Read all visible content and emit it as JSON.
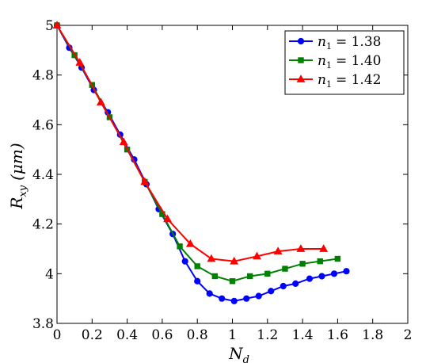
{
  "chart_data": {
    "type": "line",
    "title": "",
    "xlabel": "N",
    "xlabel_sub": "d",
    "ylabel": "R",
    "ylabel_sub": "xy",
    "ylabel_unit": "(μm)",
    "xlim": [
      0,
      2
    ],
    "ylim": [
      3.8,
      5
    ],
    "x_ticks": [
      0,
      0.2,
      0.4,
      0.6,
      0.8,
      1,
      1.2,
      1.4,
      1.6,
      1.8,
      2
    ],
    "x_tick_labels": [
      "0",
      "0.2",
      "0.4",
      "0.6",
      "0.8",
      "1",
      "1.2",
      "1.4",
      "1.6",
      "1.8",
      "2"
    ],
    "y_ticks": [
      3.8,
      4,
      4.2,
      4.4,
      4.6,
      4.8,
      5
    ],
    "y_tick_labels": [
      "3.8",
      "4",
      "4.2",
      "4.4",
      "4.6",
      "4.8",
      "5"
    ],
    "grid": false,
    "legend_position": "top-right",
    "series": [
      {
        "name": "n1 = 1.38",
        "legend_var": "n",
        "legend_sub": "1",
        "legend_value": "= 1.38",
        "color": "#0000ff",
        "marker": "circle",
        "x": [
          0,
          0.07,
          0.14,
          0.21,
          0.29,
          0.36,
          0.44,
          0.51,
          0.58,
          0.66,
          0.73,
          0.8,
          0.87,
          0.94,
          1.01,
          1.08,
          1.15,
          1.22,
          1.29,
          1.36,
          1.44,
          1.51,
          1.58,
          1.65
        ],
        "y": [
          5.0,
          4.91,
          4.83,
          4.74,
          4.65,
          4.56,
          4.46,
          4.36,
          4.26,
          4.16,
          4.05,
          3.97,
          3.92,
          3.9,
          3.89,
          3.9,
          3.91,
          3.93,
          3.95,
          3.96,
          3.98,
          3.99,
          4.0,
          4.01
        ]
      },
      {
        "name": "n1 = 1.40",
        "legend_var": "n",
        "legend_sub": "1",
        "legend_value": "= 1.40",
        "color": "#008000",
        "marker": "square",
        "x": [
          0,
          0.1,
          0.2,
          0.3,
          0.4,
          0.5,
          0.6,
          0.7,
          0.8,
          0.9,
          1.0,
          1.1,
          1.2,
          1.3,
          1.4,
          1.5,
          1.6
        ],
        "y": [
          5.0,
          4.88,
          4.76,
          4.63,
          4.5,
          4.37,
          4.24,
          4.11,
          4.03,
          3.99,
          3.97,
          3.99,
          4.0,
          4.02,
          4.04,
          4.05,
          4.06
        ]
      },
      {
        "name": "n1 = 1.42",
        "legend_var": "n",
        "legend_sub": "1",
        "legend_value": "= 1.42",
        "color": "#ff0000",
        "marker": "triangle",
        "x": [
          0,
          0.13,
          0.25,
          0.38,
          0.5,
          0.63,
          0.76,
          0.88,
          1.01,
          1.14,
          1.26,
          1.39,
          1.52
        ],
        "y": [
          5.0,
          4.85,
          4.69,
          4.53,
          4.37,
          4.22,
          4.12,
          4.06,
          4.05,
          4.07,
          4.09,
          4.1,
          4.1
        ]
      }
    ]
  }
}
